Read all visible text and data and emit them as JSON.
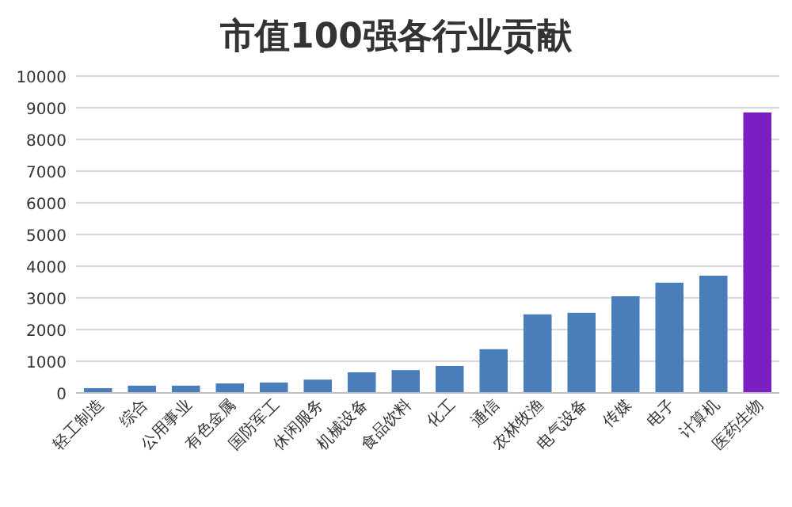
{
  "chart_data": {
    "type": "bar",
    "title": "市值100强各行业贡献",
    "categories": [
      "轻工制造",
      "综合",
      "公用事业",
      "有色金属",
      "国防军工",
      "休闲服务",
      "机械设备",
      "食品饮料",
      "化工",
      "通信",
      "农林牧渔",
      "电气设备",
      "传媒",
      "电子",
      "计算机",
      "医药生物"
    ],
    "values": [
      150,
      230,
      230,
      300,
      330,
      420,
      650,
      720,
      850,
      1380,
      2480,
      2530,
      3050,
      3480,
      3700,
      8850
    ],
    "colors": [
      "#4a7ebb",
      "#4a7ebb",
      "#4a7ebb",
      "#4a7ebb",
      "#4a7ebb",
      "#4a7ebb",
      "#4a7ebb",
      "#4a7ebb",
      "#4a7ebb",
      "#4a7ebb",
      "#4a7ebb",
      "#4a7ebb",
      "#4a7ebb",
      "#4a7ebb",
      "#4a7ebb",
      "#7b1fc2"
    ],
    "ylim": [
      0,
      10000
    ],
    "yticks": [
      0,
      1000,
      2000,
      3000,
      4000,
      5000,
      6000,
      7000,
      8000,
      9000,
      10000
    ],
    "grid": "y"
  }
}
